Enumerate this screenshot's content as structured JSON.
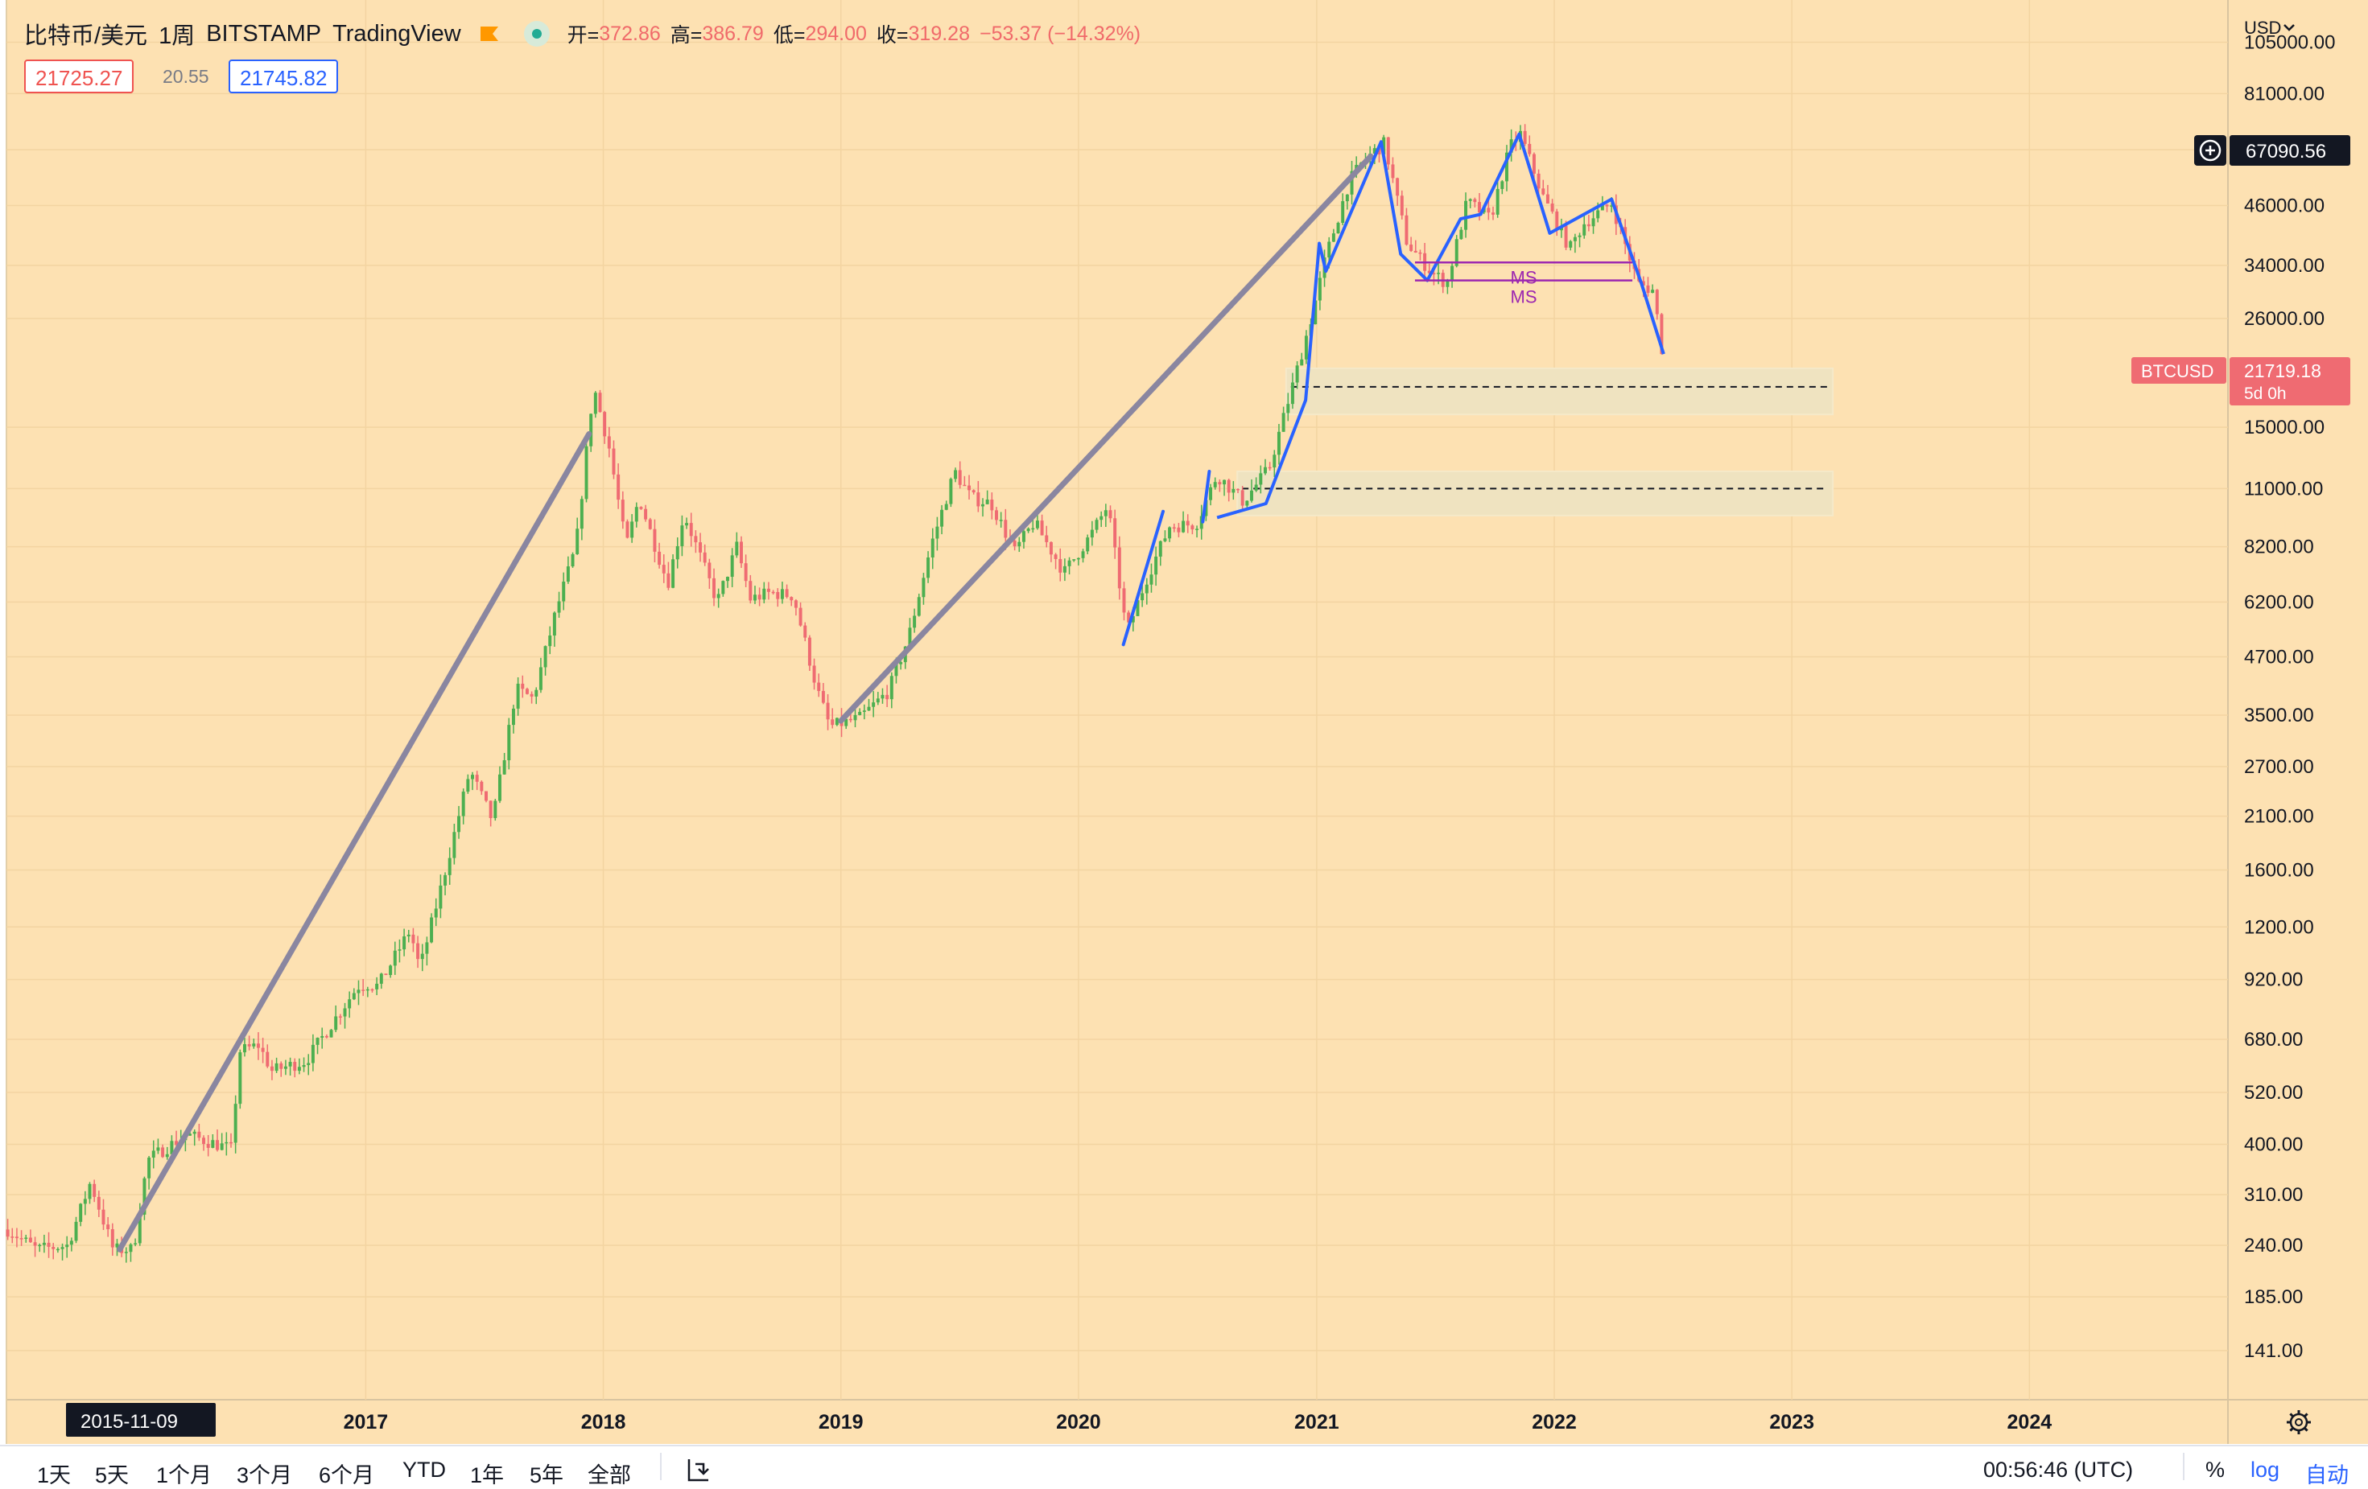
{
  "legend": {
    "symbol": "比特币/美元",
    "interval": "1周",
    "exchange": "BITSTAMP",
    "provider": "TradingView",
    "ohlc": [
      {
        "label": "开=",
        "value": "372.86"
      },
      {
        "label": "高=",
        "value": "386.79"
      },
      {
        "label": "低=",
        "value": "294.00"
      },
      {
        "label": "收=",
        "value": "319.28"
      },
      {
        "label": "",
        "value": "−53.37 (−14.32%)"
      }
    ],
    "bid": "21725.27",
    "spread": "20.55",
    "ask": "21745.82"
  },
  "price_axis": {
    "currency": "USD",
    "crosshair_price": "67090.56",
    "last_symbol": "BTCUSD",
    "last_price": "21719.18",
    "last_countdown": "5d 0h"
  },
  "time_axis": {
    "crosshair_date": "2015-11-09"
  },
  "bottom_bar": {
    "ranges": [
      "1天",
      "5天",
      "1个月",
      "3个月",
      "6个月",
      "YTD",
      "1年",
      "5年",
      "全部"
    ],
    "clock": "00:56:46 (UTC)",
    "percent_label": "%",
    "log_label": "log",
    "auto_label": "自动"
  },
  "colors": {
    "background": "#fde1b2",
    "up": "#4caf50",
    "down": "#ef6b72",
    "trendline_gray": "#8a86a0",
    "trendline_blue": "#2962ff",
    "ms_purple": "#9c27b0",
    "zone_fill": "#efe3c0"
  },
  "chart_data": {
    "type": "candlestick",
    "title": "",
    "scale": "log",
    "xlabel": "",
    "ylabel": "",
    "ylim": [
      110,
      130000
    ],
    "xlim": [
      "2015-06-29",
      "2024-11-01"
    ],
    "y_ticks": [
      141,
      185,
      240,
      310,
      400,
      520,
      680,
      920,
      1200,
      1600,
      2100,
      2700,
      3500,
      4700,
      6200,
      8200,
      11000,
      15000,
      26000,
      34000,
      46000,
      61000,
      81000,
      105000
    ],
    "y_tick_labels": [
      "141.00",
      "185.00",
      "240.00",
      "310.00",
      "400.00",
      "520.00",
      "680.00",
      "920.00",
      "1200.00",
      "1600.00",
      "2100.00",
      "2700.00",
      "3500.00",
      "4700.00",
      "6200.00",
      "8200.00",
      "11000.00",
      "15000.00",
      "26000.00",
      "34000.00",
      "46000.00",
      "61000.00",
      "81000.00",
      "105000.00"
    ],
    "x_ticks": [
      "2017",
      "2018",
      "2019",
      "2020",
      "2021",
      "2022",
      "2023",
      "2024"
    ],
    "x_tick_dates": [
      "2017-01-01",
      "2018-01-01",
      "2019-01-01",
      "2020-01-01",
      "2021-01-01",
      "2022-01-01",
      "2023-01-01",
      "2024-01-01"
    ],
    "grid": true,
    "weekly_close_anchors": [
      [
        "2015-07-01",
        260
      ],
      [
        "2015-08-15",
        235
      ],
      [
        "2015-10-01",
        240
      ],
      [
        "2015-11-05",
        330
      ],
      [
        "2015-12-10",
        235
      ],
      [
        "2016-01-10",
        235
      ],
      [
        "2016-02-01",
        370
      ],
      [
        "2016-04-01",
        420
      ],
      [
        "2016-06-10",
        390
      ],
      [
        "2016-06-20",
        640
      ],
      [
        "2016-07-20",
        660
      ],
      [
        "2016-08-10",
        580
      ],
      [
        "2016-10-01",
        610
      ],
      [
        "2016-12-20",
        890
      ],
      [
        "2017-01-05",
        900
      ],
      [
        "2017-01-20",
        890
      ],
      [
        "2017-03-10",
        1180
      ],
      [
        "2017-03-25",
        970
      ],
      [
        "2017-05-01",
        1550
      ],
      [
        "2017-06-10",
        2650
      ],
      [
        "2017-07-15",
        2050
      ],
      [
        "2017-08-20",
        4000
      ],
      [
        "2017-09-15",
        3800
      ],
      [
        "2017-10-20",
        5900
      ],
      [
        "2017-11-20",
        8200
      ],
      [
        "2017-12-17",
        18500
      ],
      [
        "2018-01-10",
        13500
      ],
      [
        "2018-02-05",
        8200
      ],
      [
        "2018-02-25",
        10500
      ],
      [
        "2018-04-10",
        6800
      ],
      [
        "2018-05-05",
        9700
      ],
      [
        "2018-06-25",
        6200
      ],
      [
        "2018-07-25",
        8200
      ],
      [
        "2018-08-15",
        6300
      ],
      [
        "2018-09-15",
        6500
      ],
      [
        "2018-10-20",
        6400
      ],
      [
        "2018-11-25",
        4000
      ],
      [
        "2018-12-15",
        3300
      ],
      [
        "2019-01-30",
        3450
      ],
      [
        "2019-03-15",
        3950
      ],
      [
        "2019-04-15",
        5200
      ],
      [
        "2019-05-20",
        8300
      ],
      [
        "2019-06-25",
        12000
      ],
      [
        "2019-07-20",
        10500
      ],
      [
        "2019-08-20",
        10200
      ],
      [
        "2019-09-25",
        8000
      ],
      [
        "2019-10-25",
        9300
      ],
      [
        "2019-12-10",
        7200
      ],
      [
        "2020-01-20",
        8700
      ],
      [
        "2020-02-15",
        10100
      ],
      [
        "2020-03-15",
        5300
      ],
      [
        "2020-04-15",
        7000
      ],
      [
        "2020-05-20",
        9100
      ],
      [
        "2020-06-30",
        9200
      ],
      [
        "2020-08-01",
        11800
      ],
      [
        "2020-09-10",
        10300
      ],
      [
        "2020-10-20",
        12200
      ],
      [
        "2020-11-25",
        18500
      ],
      [
        "2020-12-25",
        26500
      ],
      [
        "2021-01-15",
        35500
      ],
      [
        "2021-02-20",
        52000
      ],
      [
        "2021-03-15",
        58000
      ],
      [
        "2021-04-15",
        63000
      ],
      [
        "2021-05-20",
        38000
      ],
      [
        "2021-06-25",
        33000
      ],
      [
        "2021-07-20",
        31000
      ],
      [
        "2021-08-20",
        47000
      ],
      [
        "2021-09-25",
        43000
      ],
      [
        "2021-10-25",
        62000
      ],
      [
        "2021-11-10",
        66000
      ],
      [
        "2021-12-15",
        48000
      ],
      [
        "2022-01-25",
        37000
      ],
      [
        "2022-02-15",
        42000
      ],
      [
        "2022-03-30",
        46500
      ],
      [
        "2022-05-10",
        31000
      ],
      [
        "2022-06-01",
        30000
      ],
      [
        "2022-06-18",
        21719
      ]
    ],
    "drawings": {
      "gray_trendlines": [
        [
          [
            "2015-12-20",
            235
          ],
          [
            "2017-12-10",
            14500
          ]
        ],
        [
          [
            "2019-01-01",
            3400
          ],
          [
            "2021-03-25",
            59000
          ]
        ]
      ],
      "blue_path": [
        [
          "2020-08-01",
          9500
        ],
        [
          "2020-10-15",
          10200
        ],
        [
          "2020-12-15",
          17200
        ],
        [
          "2021-01-05",
          38000
        ],
        [
          "2021-01-15",
          33000
        ],
        [
          "2021-04-10",
          63500
        ],
        [
          "2021-05-10",
          36000
        ],
        [
          "2021-06-20",
          31500
        ],
        [
          "2021-08-10",
          43000
        ],
        [
          "2021-09-10",
          44000
        ],
        [
          "2021-11-08",
          66000
        ],
        [
          "2021-12-25",
          40000
        ],
        [
          "2022-03-30",
          47500
        ],
        [
          "2022-05-15",
          31000
        ],
        [
          "2022-06-18",
          21719
        ]
      ],
      "blue_small_segments": [
        [
          [
            "2020-03-10",
            5000
          ],
          [
            "2020-05-10",
            9800
          ]
        ],
        [
          [
            "2020-07-10",
            9300
          ],
          [
            "2020-07-20",
            12000
          ]
        ]
      ],
      "ms_lines": [
        {
          "label": "MS",
          "y": 34500,
          "x": [
            "2021-06-01",
            "2022-05-01"
          ]
        },
        {
          "label": "MS",
          "y": 31500,
          "x": [
            "2021-06-01",
            "2022-05-01"
          ]
        }
      ],
      "zones": [
        {
          "y1": 16000,
          "y2": 20200,
          "x": [
            "2020-11-15",
            "2023-03-05"
          ],
          "dashed_at": 18400
        },
        {
          "y1": 9600,
          "y2": 12000,
          "x": [
            "2020-09-01",
            "2023-03-05"
          ],
          "dashed_at": 11000
        }
      ]
    }
  }
}
